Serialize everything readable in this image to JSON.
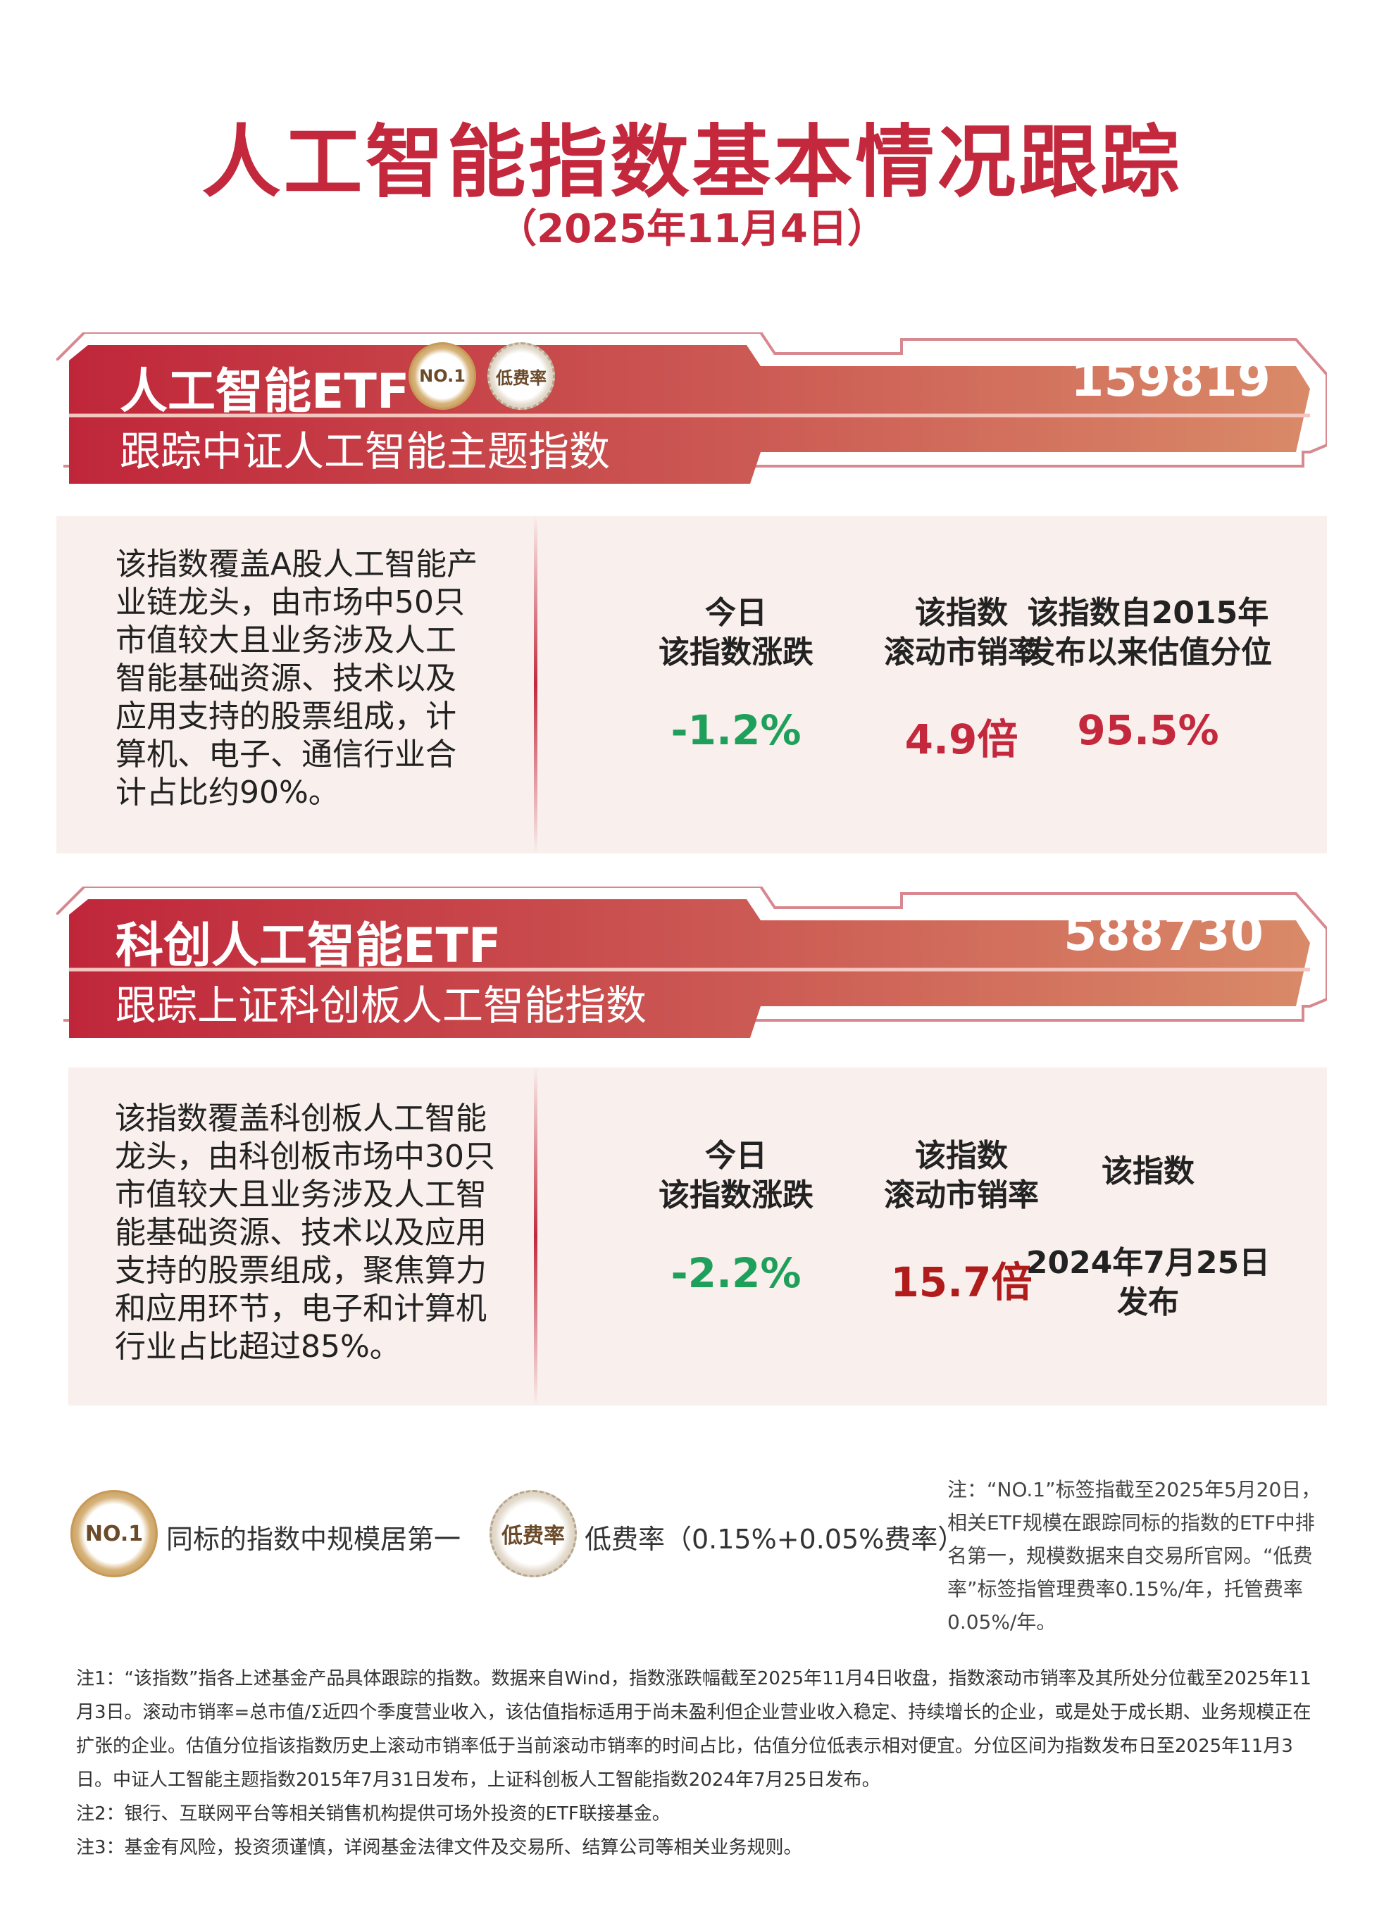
{
  "header": {
    "title": "人工智能指数基本情况跟踪",
    "date": "（2025年11月4日）"
  },
  "colors": {
    "brand_red": "#c3283d",
    "down_green": "#1fa05a",
    "value_red": "#c3283d",
    "value_darkred": "#b01c1c"
  },
  "funds": [
    {
      "name": "人工智能ETF",
      "code": "159819",
      "tracking": "跟踪中证人工智能主题指数",
      "badges": [
        "NO.1",
        "低费率"
      ],
      "description": "该指数覆盖A股人工智能产业链龙头，由市场中50只市值较大且业务涉及人工智能基础资源、技术以及应用支持的股票组成，计算机、电子、通信行业合计占比约90%。",
      "metrics": [
        {
          "label1": "今日",
          "label2": "该指数涨跌",
          "value": "-1.2%"
        },
        {
          "label1": "该指数",
          "label2": "滚动市销率",
          "value": "4.9倍"
        },
        {
          "label1": "该指数自2015年",
          "label2": "发布以来估值分位",
          "value": "95.5%"
        }
      ]
    },
    {
      "name": "科创人工智能ETF",
      "code": "588730",
      "tracking": "跟踪上证科创板人工智能指数",
      "description": "该指数覆盖科创板人工智能龙头，由科创板市场中30只市值较大且业务涉及人工智能基础资源、技术以及应用支持的股票组成，聚焦算力和应用环节，电子和计算机行业占比超过85%。",
      "metrics": [
        {
          "label1": "今日",
          "label2": "该指数涨跌",
          "value": "-2.2%"
        },
        {
          "label1": "该指数",
          "label2": "滚动市销率",
          "value": "15.7倍"
        },
        {
          "label1": "该指数",
          "value": "2024年7月25日",
          "value2": "发布"
        }
      ]
    }
  ],
  "legend": {
    "no1_badge": "NO.1",
    "no1_text": "同标的指数中规模居第一",
    "low_badge": "低费率",
    "low_text": "低费率（0.15%+0.05%费率）"
  },
  "side_note": "注：“NO.1”标签指截至2025年5月20日，相关ETF规模在跟踪同标的指数的ETF中排名第一，规模数据来自交易所官网。“低费率”标签指管理费率0.15%/年，托管费率0.05%/年。",
  "notes": [
    "注1：“该指数”指各上述基金产品具体跟踪的指数。数据来自Wind，指数涨跌幅截至2025年11月4日收盘，指数滚动市销率及其所处分位截至2025年11月3日。滚动市销率=总市值/Σ近四个季度营业收入，该估值指标适用于尚未盈利但企业营业收入稳定、持续增长的企业，或是处于成长期、业务规模正在扩张的企业。估值分位指该指数历史上滚动市销率低于当前滚动市销率的时间占比，估值分位低表示相对便宜。分位区间为指数发布日至2025年11月3日。中证人工智能主题指数2015年7月31日发布，上证科创板人工智能指数2024年7月25日发布。",
    "注2：银行、互联网平台等相关销售机构提供可场外投资的ETF联接基金。",
    "注3：基金有风险，投资须谨慎，详阅基金法律文件及交易所、结算公司等相关业务规则。"
  ]
}
